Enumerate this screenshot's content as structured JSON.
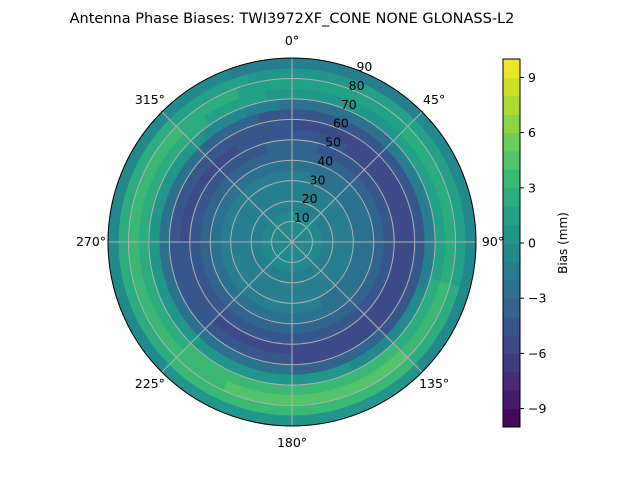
{
  "chart_data": {
    "type": "heatmap",
    "subtype": "polar-contourf",
    "title": "Antenna Phase Biases: TWI3972XF_CONE  NONE GLONASS-L2",
    "colorbar_label": "Bias (mm)",
    "colorbar_range": [
      -10,
      10
    ],
    "colorbar_ticks": [
      -9,
      -6,
      -3,
      0,
      3,
      6,
      9
    ],
    "colorbar_tick_labels": [
      "−9",
      "−6",
      "−3",
      "0",
      "3",
      "6",
      "9"
    ],
    "colormap": "viridis",
    "angle_ticks": [
      {
        "deg": 0,
        "label": "0°"
      },
      {
        "deg": 45,
        "label": "45°"
      },
      {
        "deg": 90,
        "label": "90°"
      },
      {
        "deg": 135,
        "label": "135°"
      },
      {
        "deg": 180,
        "label": "180°"
      },
      {
        "deg": 225,
        "label": "225°"
      },
      {
        "deg": 270,
        "label": "270°"
      },
      {
        "deg": 315,
        "label": "315°"
      }
    ],
    "radial_ticks": [
      10,
      20,
      30,
      40,
      50,
      60,
      70,
      80,
      90
    ],
    "radial_tick_labels": [
      "10",
      "20",
      "30",
      "40",
      "50",
      "60",
      "70",
      "80",
      "90"
    ],
    "radial_range": [
      0,
      90
    ],
    "azimuths": [
      0,
      45,
      90,
      135,
      180,
      225,
      270,
      315
    ],
    "zenith_bins": [
      2.5,
      7.5,
      12.5,
      17.5,
      22.5,
      27.5,
      32.5,
      37.5,
      42.5,
      47.5,
      52.5,
      57.5,
      62.5,
      67.5,
      72.5,
      77.5,
      82.5,
      87.5
    ],
    "values": [
      [
        -0.5,
        -0.8,
        -1.0,
        -1.2,
        -1.5,
        -1.6,
        -1.8,
        -2.2,
        -3.0,
        -3.8,
        -4.5,
        -5.0,
        -4.5,
        -2.5,
        0.5,
        1.0,
        0.5,
        -1.5
      ],
      [
        -0.5,
        -0.8,
        -1.0,
        -1.3,
        -1.6,
        -1.8,
        -2.2,
        -2.8,
        -3.5,
        -4.5,
        -5.2,
        -5.5,
        -4.5,
        -2.0,
        1.0,
        2.0,
        1.5,
        -1.0
      ],
      [
        -0.5,
        -0.8,
        -1.0,
        -1.3,
        -1.6,
        -1.8,
        -2.2,
        -2.8,
        -3.5,
        -4.5,
        -5.5,
        -5.8,
        -4.5,
        -1.5,
        1.5,
        2.5,
        1.5,
        -1.0
      ],
      [
        -0.5,
        -0.8,
        -1.0,
        -1.3,
        -1.6,
        -1.8,
        -2.2,
        -2.8,
        -3.8,
        -5.0,
        -6.0,
        -6.0,
        -4.0,
        -0.5,
        3.0,
        4.0,
        3.0,
        0.0
      ],
      [
        -0.5,
        -0.8,
        -1.0,
        -1.2,
        -1.5,
        -1.6,
        -1.8,
        -2.5,
        -3.5,
        -4.5,
        -5.5,
        -5.0,
        -3.0,
        0.5,
        3.5,
        4.5,
        3.5,
        0.5
      ],
      [
        -0.5,
        -0.8,
        -1.0,
        -1.2,
        -1.5,
        -1.6,
        -1.8,
        -2.5,
        -3.5,
        -4.5,
        -5.0,
        -4.5,
        -2.5,
        1.0,
        3.0,
        3.5,
        3.0,
        0.0
      ],
      [
        -0.5,
        -0.8,
        -1.0,
        -1.2,
        -1.5,
        -1.6,
        -1.8,
        -2.5,
        -3.5,
        -4.5,
        -5.0,
        -4.8,
        -2.5,
        0.5,
        2.5,
        3.0,
        2.5,
        -0.5
      ],
      [
        -0.5,
        -0.8,
        -1.0,
        -1.2,
        -1.5,
        -1.6,
        -1.8,
        -2.5,
        -3.5,
        -4.5,
        -5.2,
        -5.0,
        -3.0,
        0.5,
        2.5,
        3.0,
        2.0,
        -0.5
      ]
    ]
  }
}
